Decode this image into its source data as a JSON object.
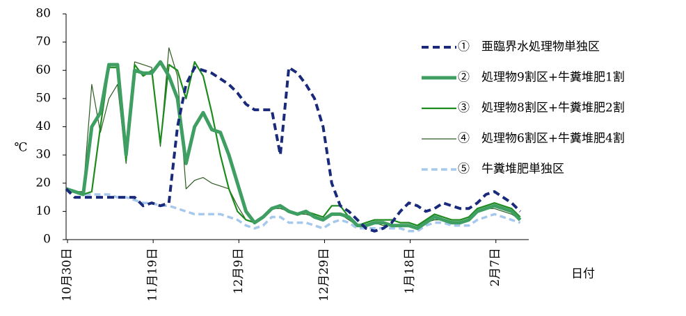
{
  "chart_data": {
    "type": "line",
    "x_label": "日付",
    "y_label": "℃",
    "categories": [
      "10月30日",
      null,
      null,
      null,
      null,
      null,
      null,
      null,
      null,
      null,
      "11月19日",
      null,
      null,
      null,
      null,
      null,
      null,
      null,
      null,
      null,
      "12月9日",
      null,
      null,
      null,
      null,
      null,
      null,
      null,
      null,
      null,
      "12月29日",
      null,
      null,
      null,
      null,
      null,
      null,
      null,
      null,
      null,
      "1月18日",
      null,
      null,
      null,
      null,
      null,
      null,
      null,
      null,
      null,
      "2月7日",
      null,
      null,
      null
    ],
    "ylim": [
      0,
      80
    ],
    "yticks": [
      0,
      10,
      20,
      30,
      40,
      50,
      60,
      70,
      80
    ],
    "series": [
      {
        "name": "①　亜臨界水処理物単独区",
        "color": "#1a2a7a",
        "line_width": 4,
        "dashed": true,
        "values": [
          18,
          15,
          15,
          15,
          15,
          15,
          15,
          15,
          15,
          12,
          13,
          12,
          13,
          40,
          55,
          61,
          60,
          59,
          57,
          55,
          52,
          48,
          46,
          46,
          46,
          30,
          61,
          59,
          55,
          50,
          40,
          20,
          12,
          10,
          7,
          4,
          3,
          4,
          6,
          10,
          13,
          12,
          10,
          11,
          13,
          12,
          11,
          11,
          13,
          16,
          17,
          15,
          13,
          10
        ]
      },
      {
        "name": "②　処理物9割区+牛糞堆肥1割",
        "color": "#3f9e62",
        "line_width": 5,
        "dashed": false,
        "values": [
          18,
          17,
          16,
          40,
          45,
          62,
          62,
          30,
          60,
          59,
          59,
          63,
          58,
          50,
          27,
          40,
          45,
          39,
          38,
          30,
          20,
          10,
          6,
          8,
          11,
          12,
          10,
          9,
          10,
          8,
          7,
          9,
          9,
          8,
          5,
          5,
          6,
          6,
          5,
          5,
          5,
          4,
          6,
          8,
          7,
          6,
          6,
          7,
          10,
          11,
          12,
          11,
          10,
          7
        ]
      },
      {
        "name": "③　処理物8割区+牛糞堆肥2割",
        "color": "#1c8a1c",
        "line_width": 2.2,
        "dashed": false,
        "values": [
          18,
          17,
          16,
          17,
          40,
          61,
          61,
          28,
          62,
          58,
          60,
          34,
          62,
          60,
          50,
          63,
          58,
          45,
          30,
          18,
          10,
          7,
          6,
          8,
          11,
          12,
          10,
          9,
          10,
          9,
          8,
          12,
          12,
          8,
          5,
          6,
          7,
          7,
          7,
          6,
          6,
          5,
          7,
          9,
          8,
          7,
          7,
          8,
          11,
          12,
          13,
          12,
          11,
          8
        ]
      },
      {
        "name": "④　処理物6割区+牛糞堆肥4割",
        "color": "#2b5a1e",
        "line_width": 1.2,
        "dashed": false,
        "values": [
          18,
          17,
          17,
          55,
          38,
          50,
          55,
          27,
          63,
          62,
          61,
          33,
          68,
          58,
          18,
          21,
          22,
          20,
          19,
          18,
          12,
          7,
          6,
          8,
          11,
          11,
          10,
          9,
          9,
          8,
          7,
          9,
          9,
          7,
          5,
          5,
          6,
          5,
          5,
          5,
          5,
          4,
          6,
          7,
          7,
          6,
          6,
          7,
          10,
          11,
          11,
          10,
          9,
          7
        ]
      },
      {
        "name": "⑤　牛糞堆肥単独区",
        "color": "#a6c8ec",
        "line_width": 3.5,
        "dashed": true,
        "values": [
          18,
          17,
          16,
          16,
          16,
          16,
          15,
          15,
          14,
          13,
          13,
          12,
          12,
          11,
          10,
          9,
          9,
          9,
          9,
          8,
          7,
          5,
          4,
          5,
          8,
          8,
          6,
          6,
          6,
          5,
          4,
          6,
          7,
          6,
          4,
          4,
          4,
          4,
          4,
          4,
          3,
          3,
          5,
          6,
          6,
          5,
          5,
          5,
          7,
          8,
          9,
          8,
          7,
          6
        ]
      }
    ]
  }
}
